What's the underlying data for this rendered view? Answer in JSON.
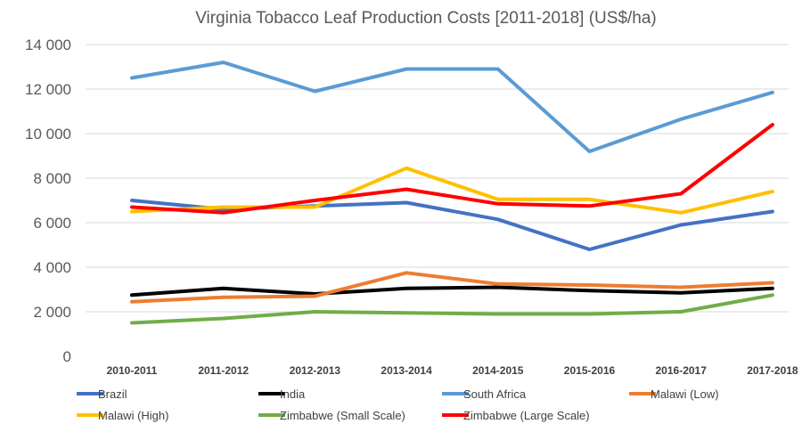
{
  "chart_data": {
    "type": "line",
    "title": "Virginia Tobacco Leaf Production Costs [2011-2018] (US$/ha)",
    "xlabel": "",
    "ylabel": "",
    "ylim": [
      0,
      14000
    ],
    "yticks": [
      "0",
      "2 000",
      "4 000",
      "6 000",
      "8 000",
      "10 000",
      "12 000",
      "14 000"
    ],
    "ytick_values": [
      0,
      2000,
      4000,
      6000,
      8000,
      10000,
      12000,
      14000
    ],
    "grid": true,
    "legend_position": "bottom",
    "categories": [
      "2010-2011",
      "2011-2012",
      "2012-2013",
      "2013-2014",
      "2014-2015",
      "2015-2016",
      "2016-2017",
      "2017-2018"
    ],
    "series": [
      {
        "name": "Brazil",
        "color": "#4472c4",
        "values": [
          7000,
          6600,
          6750,
          6900,
          6150,
          4800,
          5900,
          6500
        ]
      },
      {
        "name": "India",
        "color": "#000000",
        "values": [
          2750,
          3050,
          2800,
          3050,
          3100,
          2950,
          2850,
          3050
        ]
      },
      {
        "name": "South Africa",
        "color": "#5b9bd5",
        "values": [
          12500,
          13200,
          11900,
          12900,
          12900,
          9200,
          10650,
          11850
        ]
      },
      {
        "name": "Malawi (Low)",
        "color": "#ed7d31",
        "values": [
          2450,
          2650,
          2700,
          3750,
          3250,
          3200,
          3100,
          3300
        ]
      },
      {
        "name": "Malawi (High)",
        "color": "#ffc000",
        "values": [
          6500,
          6700,
          6700,
          8450,
          7050,
          7050,
          6450,
          7400
        ]
      },
      {
        "name": "Zimbabwe (Small Scale)",
        "color": "#70ad47",
        "values": [
          1500,
          1700,
          2000,
          1950,
          1900,
          1900,
          2000,
          2750
        ]
      },
      {
        "name": "Zimbabwe (Large Scale)",
        "color": "#ff0000",
        "values": [
          6700,
          6450,
          7000,
          7500,
          6850,
          6750,
          7300,
          10400
        ]
      }
    ]
  }
}
